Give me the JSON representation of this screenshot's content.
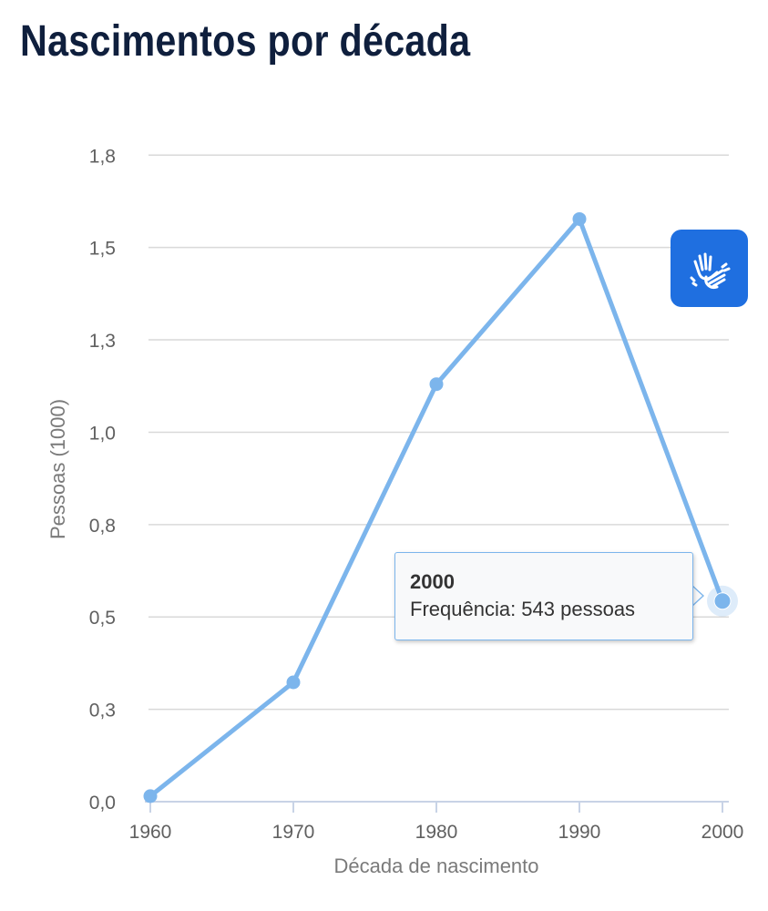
{
  "page": {
    "title": "Nascimentos por década"
  },
  "colors": {
    "series": "#7cb5ec",
    "grid": "#d9d9d9",
    "title": "#0f1f3d",
    "accessibility_button": "#1f6fe0"
  },
  "accessibility_button": {
    "icon": "sign-language-icon"
  },
  "tooltip": {
    "title": "2000",
    "body": "Frequência: 543 pessoas"
  },
  "chart_data": {
    "type": "line",
    "title": "Nascimentos por década",
    "xlabel": "Década de nascimento",
    "ylabel": "Pessoas (1000)",
    "categories": [
      "1960",
      "1970",
      "1980",
      "1990",
      "2000"
    ],
    "values": [
      0.015,
      0.323,
      1.13,
      1.577,
      0.543
    ],
    "ylim": [
      0,
      1.8
    ],
    "yticks": [
      0,
      0.25,
      0.5,
      0.75,
      1.0,
      1.25,
      1.5,
      1.75
    ],
    "ytick_labels": [
      "0,0",
      "0,3",
      "0,5",
      "0,8",
      "1,0",
      "1,3",
      "1,5",
      "1,8"
    ],
    "grid": true,
    "legend": "none",
    "highlighted_category": "2000"
  }
}
